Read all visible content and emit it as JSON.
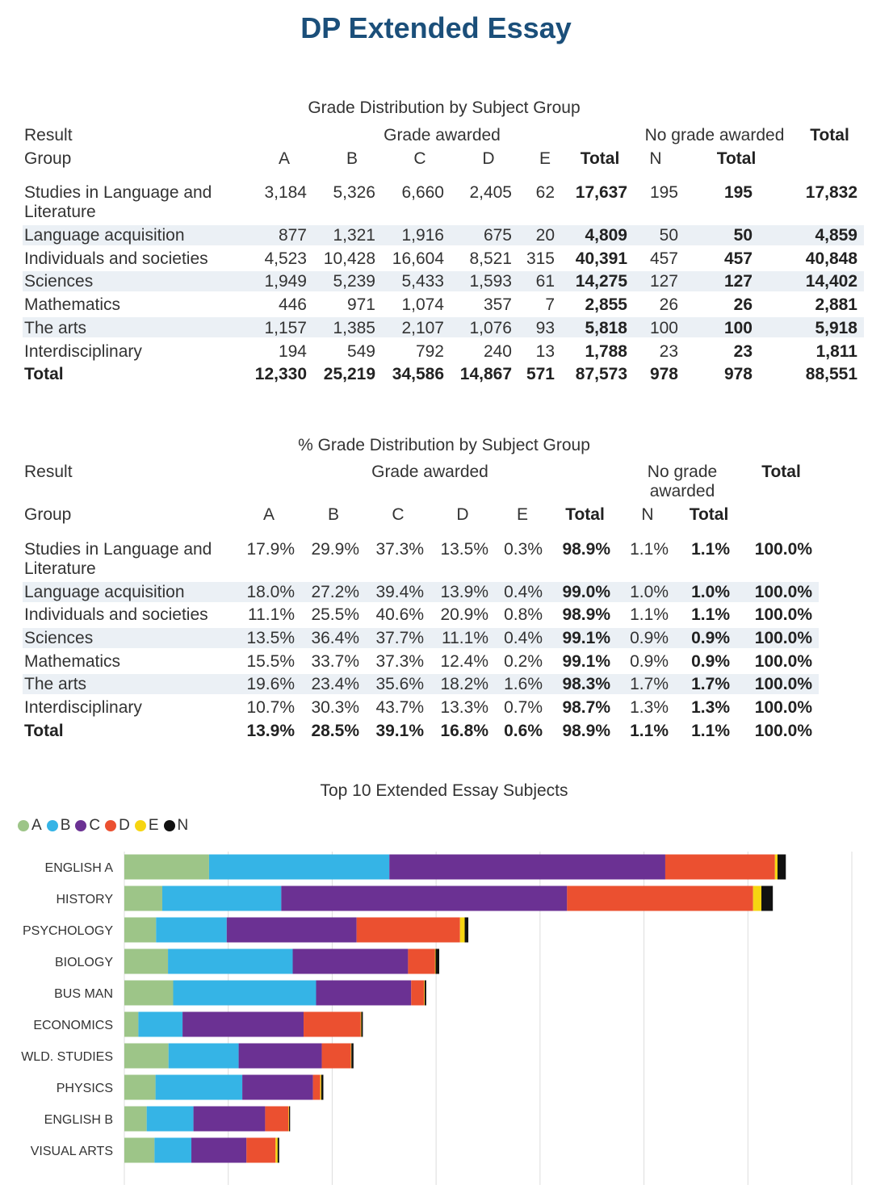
{
  "page_title": "DP Extended Essay",
  "table1": {
    "title": "Grade Distribution by Subject Group",
    "header": {
      "result": "Result",
      "group": "Group",
      "grade_awarded": "Grade awarded",
      "no_grade_awarded": "No grade awarded",
      "total_top": "Total",
      "cols": [
        "A",
        "B",
        "C",
        "D",
        "E",
        "Total",
        "N",
        "Total"
      ]
    },
    "rows": [
      {
        "name": "Studies in Language and",
        "name2": "Literature",
        "values": [
          "3,184",
          "5,326",
          "6,660",
          "2,405",
          "62",
          "17,637",
          "195",
          "195",
          "17,832"
        ]
      },
      {
        "name": "Language acquisition",
        "values": [
          "877",
          "1,321",
          "1,916",
          "675",
          "20",
          "4,809",
          "50",
          "50",
          "4,859"
        ]
      },
      {
        "name": "Individuals and societies",
        "values": [
          "4,523",
          "10,428",
          "16,604",
          "8,521",
          "315",
          "40,391",
          "457",
          "457",
          "40,848"
        ]
      },
      {
        "name": "Sciences",
        "values": [
          "1,949",
          "5,239",
          "5,433",
          "1,593",
          "61",
          "14,275",
          "127",
          "127",
          "14,402"
        ]
      },
      {
        "name": "Mathematics",
        "values": [
          "446",
          "971",
          "1,074",
          "357",
          "7",
          "2,855",
          "26",
          "26",
          "2,881"
        ]
      },
      {
        "name": "The arts",
        "values": [
          "1,157",
          "1,385",
          "2,107",
          "1,076",
          "93",
          "5,818",
          "100",
          "100",
          "5,918"
        ]
      },
      {
        "name": "Interdisciplinary",
        "values": [
          "194",
          "549",
          "792",
          "240",
          "13",
          "1,788",
          "23",
          "23",
          "1,811"
        ]
      }
    ],
    "total_row": {
      "name": "Total",
      "values": [
        "12,330",
        "25,219",
        "34,586",
        "14,867",
        "571",
        "87,573",
        "978",
        "978",
        "88,551"
      ]
    }
  },
  "table2": {
    "title": "% Grade Distribution by Subject Group",
    "header": {
      "result": "Result",
      "group": "Group",
      "grade_awarded": "Grade awarded",
      "no_grade_1": "No grade",
      "no_grade_2": "awarded",
      "total_top": "Total",
      "cols": [
        "A",
        "B",
        "C",
        "D",
        "E",
        "Total",
        "N",
        "Total"
      ]
    },
    "rows": [
      {
        "name": "Studies in Language and",
        "name2": "Literature",
        "values": [
          "17.9%",
          "29.9%",
          "37.3%",
          "13.5%",
          "0.3%",
          "98.9%",
          "1.1%",
          "1.1%",
          "100.0%"
        ]
      },
      {
        "name": "Language acquisition",
        "values": [
          "18.0%",
          "27.2%",
          "39.4%",
          "13.9%",
          "0.4%",
          "99.0%",
          "1.0%",
          "1.0%",
          "100.0%"
        ]
      },
      {
        "name": "Individuals and societies",
        "values": [
          "11.1%",
          "25.5%",
          "40.6%",
          "20.9%",
          "0.8%",
          "98.9%",
          "1.1%",
          "1.1%",
          "100.0%"
        ]
      },
      {
        "name": "Sciences",
        "values": [
          "13.5%",
          "36.4%",
          "37.7%",
          "11.1%",
          "0.4%",
          "99.1%",
          "0.9%",
          "0.9%",
          "100.0%"
        ]
      },
      {
        "name": "Mathematics",
        "values": [
          "15.5%",
          "33.7%",
          "37.3%",
          "12.4%",
          "0.2%",
          "99.1%",
          "0.9%",
          "0.9%",
          "100.0%"
        ]
      },
      {
        "name": "The arts",
        "values": [
          "19.6%",
          "23.4%",
          "35.6%",
          "18.2%",
          "1.6%",
          "98.3%",
          "1.7%",
          "1.7%",
          "100.0%"
        ]
      },
      {
        "name": "Interdisciplinary",
        "values": [
          "10.7%",
          "30.3%",
          "43.7%",
          "13.3%",
          "0.7%",
          "98.7%",
          "1.3%",
          "1.3%",
          "100.0%"
        ]
      }
    ],
    "total_row": {
      "name": "Total",
      "values": [
        "13.9%",
        "28.5%",
        "39.1%",
        "16.8%",
        "0.6%",
        "98.9%",
        "1.1%",
        "1.1%",
        "100.0%"
      ]
    }
  },
  "chart_data": {
    "type": "bar",
    "orientation": "horizontal",
    "stacked": true,
    "title": "Top 10 Extended Essay Subjects",
    "categories": [
      "ENGLISH A",
      "HISTORY",
      "PSYCHOLOGY",
      "BIOLOGY",
      "BUS MAN",
      "ECONOMICS",
      "WLD. STUDIES",
      "PHYSICS",
      "ENGLISH B",
      "VISUAL ARTS"
    ],
    "series": [
      {
        "name": "A",
        "color": "#9dc588",
        "values": [
          1630,
          730,
          610,
          840,
          940,
          270,
          850,
          600,
          430,
          580
        ]
      },
      {
        "name": "B",
        "color": "#35b4e6",
        "values": [
          3470,
          2290,
          1360,
          2400,
          2750,
          850,
          1350,
          1670,
          900,
          710
        ]
      },
      {
        "name": "C",
        "color": "#6b3193",
        "values": [
          5310,
          5500,
          2500,
          2220,
          1830,
          2330,
          1600,
          1360,
          1380,
          1060
        ]
      },
      {
        "name": "D",
        "color": "#eb5030",
        "values": [
          2110,
          3580,
          1990,
          520,
          250,
          1100,
          560,
          140,
          450,
          560
        ]
      },
      {
        "name": "E",
        "color": "#f6d511",
        "values": [
          50,
          160,
          90,
          10,
          10,
          10,
          10,
          20,
          10,
          40
        ]
      },
      {
        "name": "N",
        "color": "#111111",
        "values": [
          160,
          220,
          70,
          70,
          30,
          30,
          40,
          40,
          20,
          30
        ]
      }
    ],
    "xlim": [
      0,
      14000
    ],
    "grid": true,
    "legend": "top-left"
  }
}
